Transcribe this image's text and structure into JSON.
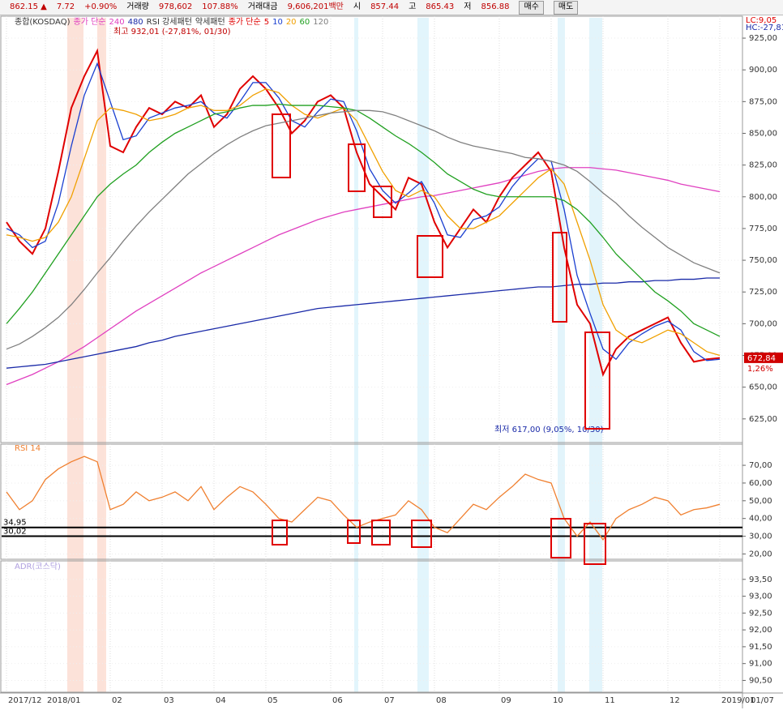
{
  "header": {
    "items": [
      "862.15 ▲",
      "7.72",
      "+0.90%",
      "거래량",
      "978,602",
      "107.88%",
      "거래대금",
      "9,606,201백만",
      "시",
      "857.44",
      "고",
      "865.43",
      "저",
      "856.88"
    ],
    "buttons": [
      "매수",
      "매도"
    ]
  },
  "chart_data": [
    {
      "type": "line",
      "title": "종합(KOSDAQ)",
      "legend_prefix": "종가 단순",
      "pattern_labels": [
        "RSI 강세패턴",
        "약세패턴"
      ],
      "categories": [
        "2017/12",
        null,
        null,
        "2018/01",
        null,
        null,
        null,
        null,
        "02",
        null,
        null,
        null,
        "03",
        null,
        null,
        null,
        "04",
        null,
        null,
        null,
        "05",
        null,
        null,
        null,
        null,
        "06",
        null,
        null,
        null,
        "07",
        null,
        null,
        null,
        "08",
        null,
        null,
        null,
        null,
        "09",
        null,
        null,
        null,
        "10",
        null,
        null,
        null,
        "11",
        null,
        null,
        null,
        null,
        "12",
        null,
        null,
        null,
        "2019/01"
      ],
      "x_end_label": "01/07",
      "ylim": [
        607,
        941
      ],
      "yticks": [
        {
          "value": 625,
          "label": "625,00"
        },
        {
          "value": 650,
          "label": "650,00"
        },
        {
          "value": 675,
          "label": "675,00"
        },
        {
          "value": 700,
          "label": "700,00"
        },
        {
          "value": 725,
          "label": "725,00"
        },
        {
          "value": 750,
          "label": "750,00"
        },
        {
          "value": 775,
          "label": "775,00"
        },
        {
          "value": 800,
          "label": "800,00"
        },
        {
          "value": 825,
          "label": "825,00"
        },
        {
          "value": 850,
          "label": "850,00"
        },
        {
          "value": 875,
          "label": "875,00"
        },
        {
          "value": 900,
          "label": "900,00"
        },
        {
          "value": 925,
          "label": "925,00"
        }
      ],
      "series": [
        {
          "name": "240",
          "color": "#e040c0",
          "values": [
            652,
            656,
            660,
            665,
            670,
            676,
            682,
            689,
            696,
            703,
            710,
            716,
            722,
            728,
            734,
            740,
            745,
            750,
            755,
            760,
            765,
            770,
            774,
            778,
            782,
            785,
            788,
            790,
            792,
            794,
            796,
            798,
            800,
            801,
            803,
            805,
            807,
            809,
            811,
            814,
            817,
            820,
            822,
            823,
            823,
            823,
            822,
            821,
            819,
            817,
            815,
            813,
            810,
            808,
            806,
            804
          ]
        },
        {
          "name": "480",
          "color": "#1a2aa8",
          "values": [
            665,
            666,
            667,
            668,
            670,
            672,
            674,
            676,
            678,
            680,
            682,
            685,
            687,
            690,
            692,
            694,
            696,
            698,
            700,
            702,
            704,
            706,
            708,
            710,
            712,
            713,
            714,
            715,
            716,
            717,
            718,
            719,
            720,
            721,
            722,
            723,
            724,
            725,
            726,
            727,
            728,
            729,
            729,
            730,
            731,
            731,
            732,
            732,
            733,
            733,
            734,
            734,
            735,
            735,
            736,
            736
          ]
        },
        {
          "name": "5",
          "color": "#e00000",
          "values": [
            780,
            765,
            755,
            775,
            820,
            870,
            895,
            915,
            840,
            835,
            855,
            870,
            865,
            875,
            870,
            880,
            855,
            865,
            885,
            895,
            885,
            870,
            850,
            860,
            875,
            880,
            870,
            835,
            810,
            800,
            790,
            815,
            810,
            780,
            760,
            775,
            790,
            780,
            800,
            815,
            825,
            835,
            820,
            760,
            715,
            700,
            660,
            680,
            690,
            695,
            700,
            705,
            685,
            670,
            672,
            673
          ]
        },
        {
          "name": "10",
          "color": "#1a3fd0",
          "values": [
            775,
            770,
            760,
            765,
            795,
            840,
            880,
            905,
            875,
            845,
            848,
            862,
            866,
            870,
            872,
            875,
            866,
            862,
            875,
            890,
            890,
            878,
            860,
            855,
            867,
            877,
            875,
            852,
            822,
            805,
            795,
            803,
            812,
            795,
            770,
            768,
            782,
            785,
            792,
            808,
            820,
            830,
            828,
            790,
            738,
            708,
            680,
            672,
            685,
            692,
            698,
            702,
            695,
            678,
            671,
            672
          ]
        },
        {
          "name": "20",
          "color": "#f0a000",
          "values": [
            770,
            768,
            765,
            768,
            780,
            800,
            830,
            860,
            870,
            868,
            865,
            860,
            862,
            865,
            870,
            872,
            868,
            868,
            872,
            880,
            885,
            882,
            872,
            865,
            862,
            866,
            870,
            860,
            840,
            820,
            805,
            800,
            805,
            800,
            785,
            775,
            775,
            780,
            785,
            795,
            805,
            815,
            822,
            810,
            780,
            750,
            715,
            695,
            688,
            685,
            690,
            695,
            692,
            685,
            678,
            675
          ]
        },
        {
          "name": "60",
          "color": "#20a020",
          "values": [
            700,
            712,
            725,
            740,
            755,
            770,
            785,
            800,
            810,
            818,
            825,
            835,
            843,
            850,
            855,
            860,
            865,
            867,
            870,
            872,
            872,
            873,
            872,
            872,
            872,
            871,
            870,
            868,
            862,
            855,
            848,
            842,
            835,
            827,
            818,
            812,
            806,
            802,
            800,
            800,
            800,
            800,
            800,
            797,
            790,
            780,
            768,
            755,
            745,
            735,
            725,
            718,
            710,
            700,
            695,
            690
          ]
        },
        {
          "name": "120",
          "color": "#808080",
          "values": [
            680,
            684,
            690,
            697,
            705,
            715,
            727,
            740,
            752,
            765,
            777,
            788,
            798,
            808,
            818,
            826,
            834,
            841,
            847,
            852,
            856,
            858,
            860,
            862,
            864,
            866,
            867,
            868,
            868,
            867,
            864,
            860,
            856,
            852,
            847,
            843,
            840,
            838,
            836,
            834,
            831,
            830,
            828,
            825,
            820,
            812,
            803,
            795,
            785,
            776,
            768,
            760,
            754,
            748,
            744,
            740
          ]
        }
      ],
      "annotations": [
        "최고 932,01 (-27,81%, 01/30)",
        "최저 617,00 (9,05%, 10/30)"
      ],
      "right_labels": [
        "LC:9,05",
        "HC:-27,81"
      ],
      "last_price": {
        "value": 672.84,
        "label": "672,84"
      },
      "change_label": "1,26%"
    },
    {
      "type": "line",
      "title": "RSI 14",
      "ylim": [
        17,
        81
      ],
      "yticks": [
        {
          "value": 20,
          "label": "20,00"
        },
        {
          "value": 30,
          "label": "30,00"
        },
        {
          "value": 40,
          "label": "40,00"
        },
        {
          "value": 50,
          "label": "50,00"
        },
        {
          "value": 60,
          "label": "60,00"
        },
        {
          "value": 70,
          "label": "70,00"
        }
      ],
      "levels": [
        {
          "value": 34.95,
          "label": "34,95"
        },
        {
          "value": 30.02,
          "label": "30,02"
        }
      ],
      "series": [
        {
          "name": "RSI 14",
          "color": "#f08030",
          "values": [
            55,
            45,
            50,
            62,
            68,
            72,
            75,
            72,
            45,
            48,
            55,
            50,
            52,
            55,
            50,
            58,
            45,
            52,
            58,
            55,
            48,
            40,
            38,
            45,
            52,
            50,
            42,
            35,
            38,
            40,
            42,
            50,
            45,
            35,
            32,
            40,
            48,
            45,
            52,
            58,
            65,
            62,
            60,
            40,
            30,
            38,
            28,
            40,
            45,
            48,
            52,
            50,
            42,
            45,
            46,
            48
          ]
        }
      ]
    },
    {
      "type": "line",
      "title": "ADR(코스닥)",
      "ylim": [
        90.15,
        94
      ],
      "yticks": [
        {
          "value": 90.5,
          "label": "90,50"
        },
        {
          "value": 91,
          "label": "91,00"
        },
        {
          "value": 91.5,
          "label": "91,50"
        },
        {
          "value": 92,
          "label": "92,00"
        },
        {
          "value": 92.5,
          "label": "92,50"
        },
        {
          "value": 93,
          "label": "93,00"
        },
        {
          "value": 93.5,
          "label": "93,50"
        }
      ],
      "series": []
    }
  ]
}
